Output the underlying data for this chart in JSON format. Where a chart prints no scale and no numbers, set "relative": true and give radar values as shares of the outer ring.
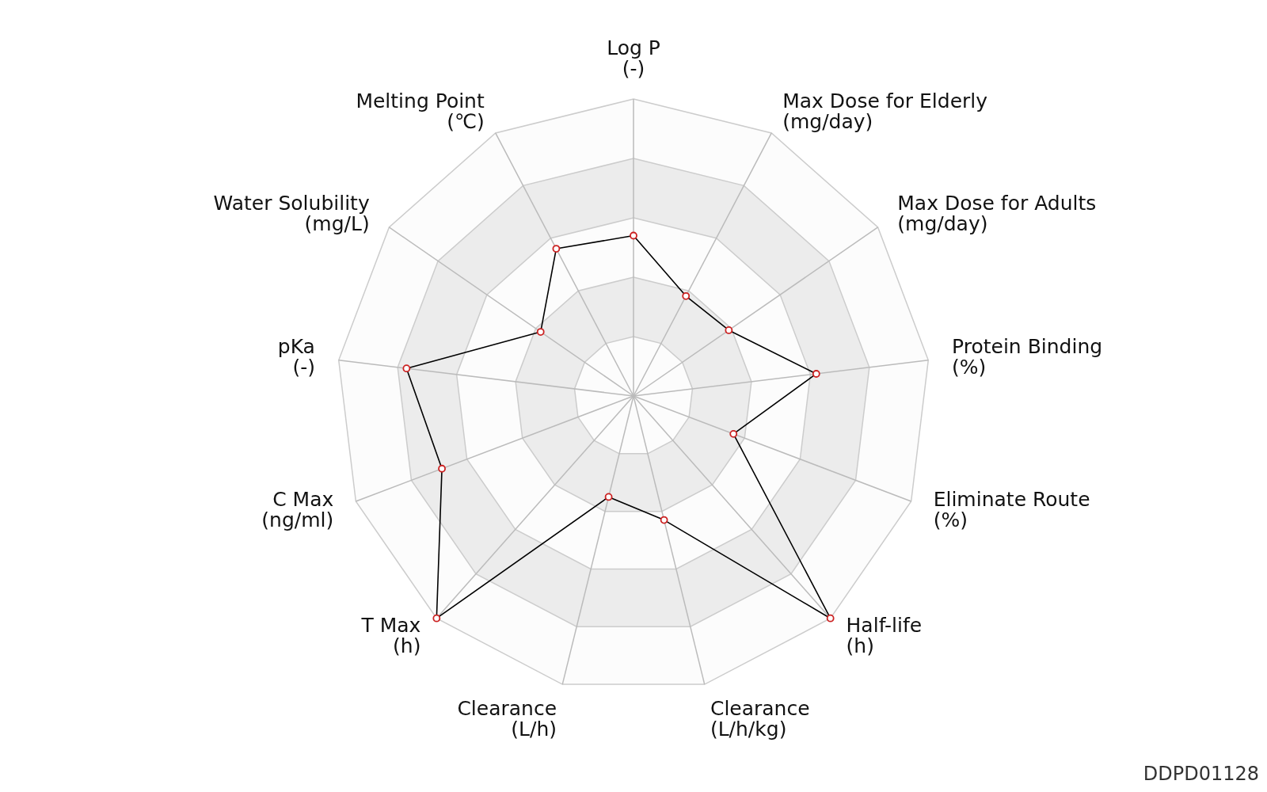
{
  "chart_data": {
    "type": "radar",
    "relative": true,
    "grid": true,
    "marker": "circle",
    "categories": [
      "Log P\n(-)",
      "Max Dose for Elderly\n(mg/day)",
      "Max Dose for Adults\n(mg/day)",
      "Protein Binding\n(%)",
      "Eliminate Route\n(%)",
      "Half-life\n(h)",
      "Clearance\n(L/h/kg)",
      "Clearance\n(L/h)",
      "T Max\n(h)",
      "C Max\n(ng/ml)",
      "pKa\n(-)",
      "Water Solubility\n(mg/L)",
      "Melting Point\n(℃)"
    ],
    "series": [
      {
        "color": "#000000",
        "values": [
          0.54,
          0.38,
          0.39,
          0.62,
          0.36,
          1.0,
          0.43,
          0.35,
          1.0,
          0.69,
          0.77,
          0.38,
          0.56
        ]
      }
    ],
    "annotations": [
      "DDPD01128"
    ]
  }
}
